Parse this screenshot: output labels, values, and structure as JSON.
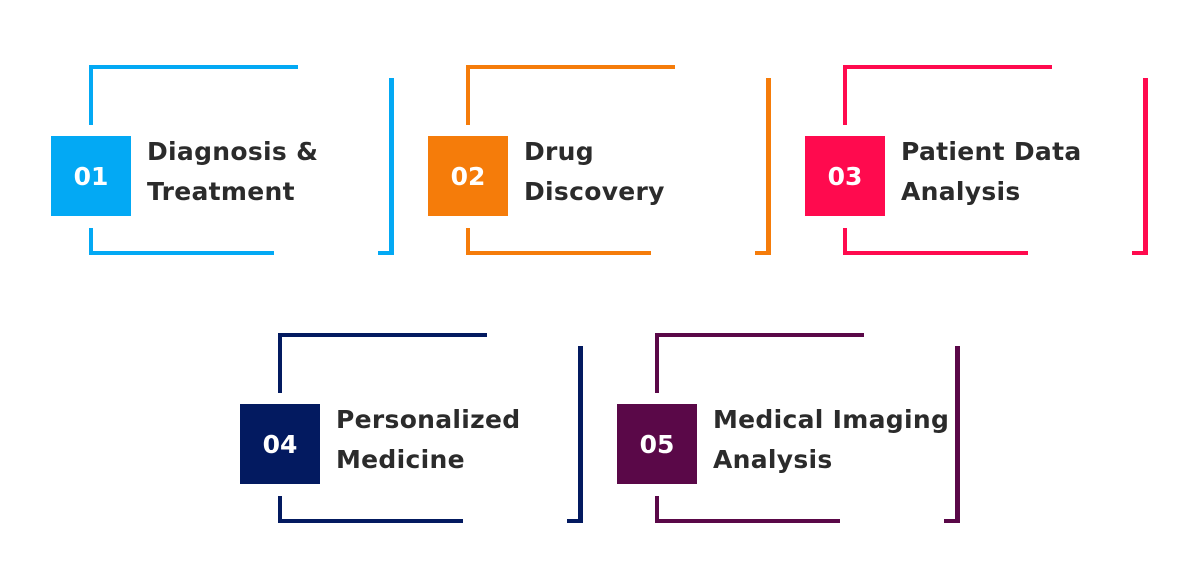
{
  "items": [
    {
      "number": "01",
      "line1": "Diagnosis &",
      "line2": "Treatment",
      "color": "#03a9f4"
    },
    {
      "number": "02",
      "line1": "Drug",
      "line2": "Discovery",
      "color": "#f57c0a"
    },
    {
      "number": "03",
      "line1": "Patient Data",
      "line2": "Analysis",
      "color": "#ff0a4e"
    },
    {
      "number": "04",
      "line1": "Personalized",
      "line2": "Medicine",
      "color": "#031a60"
    },
    {
      "number": "05",
      "line1": "Medical Imaging",
      "line2": "Analysis",
      "color": "#5a0848"
    }
  ]
}
